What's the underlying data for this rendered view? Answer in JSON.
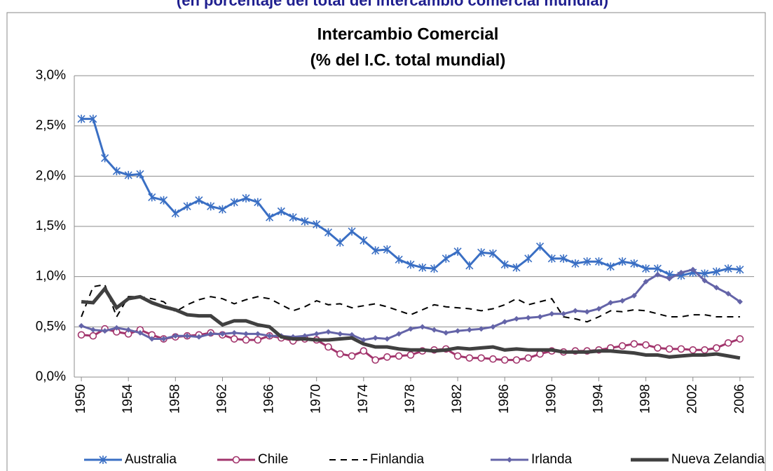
{
  "heading": "(en porcentaje del total del intercambio comercial mundial)",
  "chart_data": {
    "type": "line",
    "title": "Intercambio Comercial",
    "subtitle": "(% del I.C. total mundial)",
    "x": [
      1950,
      1951,
      1952,
      1953,
      1954,
      1955,
      1956,
      1957,
      1958,
      1959,
      1960,
      1961,
      1962,
      1963,
      1964,
      1965,
      1966,
      1967,
      1968,
      1969,
      1970,
      1971,
      1972,
      1973,
      1974,
      1975,
      1976,
      1977,
      1978,
      1979,
      1980,
      1981,
      1982,
      1983,
      1984,
      1985,
      1986,
      1987,
      1988,
      1989,
      1990,
      1991,
      1992,
      1993,
      1994,
      1995,
      1996,
      1997,
      1998,
      1999,
      2000,
      2001,
      2002,
      2003,
      2004,
      2005,
      2006
    ],
    "xlim": [
      1949.4,
      2007.2
    ],
    "xticks": [
      1950,
      1954,
      1958,
      1962,
      1966,
      1970,
      1974,
      1978,
      1982,
      1986,
      1990,
      1994,
      1998,
      2002,
      2006
    ],
    "ylim": [
      0,
      3
    ],
    "yticks": [
      {
        "value": 0,
        "label": "0,0%"
      },
      {
        "value": 0.5,
        "label": "0,5%"
      },
      {
        "value": 1,
        "label": "1,0%"
      },
      {
        "value": 1.5,
        "label": "1,5%"
      },
      {
        "value": 2,
        "label": "2,0%"
      },
      {
        "value": 2.5,
        "label": "2,5%"
      },
      {
        "value": 3,
        "label": "3,0%"
      }
    ],
    "grid": true,
    "legend": "bottom",
    "series": [
      {
        "name": "Australia",
        "color": "#3a6fc4",
        "marker": "asterisk",
        "values": [
          2.57,
          2.57,
          2.18,
          2.05,
          2.01,
          2.02,
          1.79,
          1.76,
          1.63,
          1.7,
          1.76,
          1.7,
          1.67,
          1.74,
          1.78,
          1.74,
          1.59,
          1.65,
          1.59,
          1.55,
          1.52,
          1.44,
          1.34,
          1.45,
          1.36,
          1.26,
          1.27,
          1.17,
          1.12,
          1.09,
          1.08,
          1.18,
          1.25,
          1.11,
          1.24,
          1.23,
          1.12,
          1.09,
          1.18,
          1.3,
          1.18,
          1.18,
          1.13,
          1.15,
          1.15,
          1.1,
          1.15,
          1.13,
          1.08,
          1.08,
          1.02,
          1.01,
          1.04,
          1.03,
          1.05,
          1.08,
          1.07
        ]
      },
      {
        "name": "Chile",
        "color": "#a2346c",
        "marker": "circle",
        "values": [
          0.42,
          0.41,
          0.48,
          0.45,
          0.43,
          0.47,
          0.42,
          0.38,
          0.4,
          0.41,
          0.42,
          0.44,
          0.42,
          0.38,
          0.37,
          0.37,
          0.41,
          0.39,
          0.36,
          0.38,
          0.37,
          0.3,
          0.23,
          0.21,
          0.26,
          0.17,
          0.2,
          0.21,
          0.22,
          0.26,
          0.27,
          0.28,
          0.21,
          0.19,
          0.19,
          0.18,
          0.17,
          0.17,
          0.19,
          0.23,
          0.26,
          0.25,
          0.26,
          0.26,
          0.27,
          0.29,
          0.31,
          0.33,
          0.32,
          0.29,
          0.28,
          0.28,
          0.27,
          0.27,
          0.29,
          0.34,
          0.38
        ]
      },
      {
        "name": "Finlandia",
        "color": "#000000",
        "marker": "dash",
        "values": [
          0.6,
          0.9,
          0.92,
          0.6,
          0.8,
          0.8,
          0.78,
          0.75,
          0.65,
          0.72,
          0.77,
          0.8,
          0.78,
          0.73,
          0.77,
          0.8,
          0.78,
          0.72,
          0.66,
          0.7,
          0.76,
          0.72,
          0.73,
          0.69,
          0.71,
          0.73,
          0.7,
          0.66,
          0.62,
          0.67,
          0.72,
          0.7,
          0.69,
          0.68,
          0.66,
          0.68,
          0.72,
          0.78,
          0.72,
          0.75,
          0.78,
          0.6,
          0.58,
          0.55,
          0.6,
          0.66,
          0.65,
          0.67,
          0.66,
          0.63,
          0.6,
          0.6,
          0.62,
          0.62,
          0.6,
          0.6,
          0.6
        ]
      },
      {
        "name": "Irlanda",
        "color": "#6464a8",
        "marker": "diamond",
        "values": [
          0.51,
          0.47,
          0.46,
          0.49,
          0.47,
          0.44,
          0.38,
          0.38,
          0.41,
          0.41,
          0.4,
          0.43,
          0.43,
          0.44,
          0.43,
          0.43,
          0.41,
          0.41,
          0.4,
          0.41,
          0.43,
          0.45,
          0.43,
          0.42,
          0.37,
          0.39,
          0.38,
          0.43,
          0.48,
          0.5,
          0.47,
          0.44,
          0.46,
          0.47,
          0.48,
          0.5,
          0.55,
          0.58,
          0.59,
          0.6,
          0.63,
          0.63,
          0.66,
          0.65,
          0.68,
          0.74,
          0.76,
          0.81,
          0.95,
          1.02,
          0.98,
          1.04,
          1.07,
          0.96,
          0.89,
          0.83,
          0.75
        ]
      },
      {
        "name": "Nueva Zelandia",
        "color": "#404040",
        "marker": "thick",
        "values": [
          0.75,
          0.74,
          0.88,
          0.69,
          0.78,
          0.8,
          0.74,
          0.7,
          0.67,
          0.62,
          0.61,
          0.61,
          0.52,
          0.56,
          0.56,
          0.52,
          0.5,
          0.4,
          0.38,
          0.38,
          0.37,
          0.37,
          0.38,
          0.39,
          0.33,
          0.3,
          0.3,
          0.28,
          0.27,
          0.27,
          0.26,
          0.27,
          0.29,
          0.28,
          0.29,
          0.3,
          0.27,
          0.28,
          0.27,
          0.27,
          0.27,
          0.25,
          0.25,
          0.25,
          0.26,
          0.26,
          0.25,
          0.24,
          0.22,
          0.22,
          0.2,
          0.21,
          0.22,
          0.22,
          0.23,
          0.21,
          0.19
        ]
      }
    ]
  }
}
